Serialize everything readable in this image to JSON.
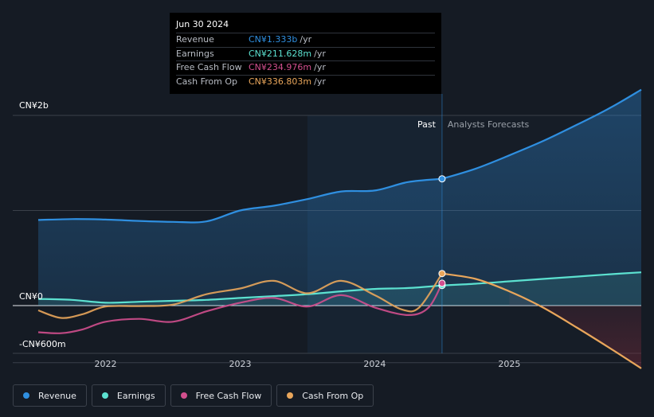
{
  "chart_data": {
    "type": "line",
    "title": "",
    "y_axis": {
      "top_label": "CN¥2b",
      "zero_label": "CN¥0",
      "bottom_label": "-CN¥600m",
      "ylim": [
        -600,
        2000
      ]
    },
    "x_ticks": [
      "2022",
      "2023",
      "2024",
      "2025"
    ],
    "xlim": [
      2021.5,
      2025.98
    ],
    "divider": {
      "forecast_start": 2024.5,
      "shade_start": 2023.5
    },
    "region_labels": {
      "past": "Past",
      "forecast": "Analysts Forecasts"
    },
    "series": [
      {
        "name": "Revenue",
        "color": "#2f8fe0",
        "fill": true,
        "points": [
          [
            2021.5,
            900
          ],
          [
            2021.75,
            910
          ],
          [
            2022.0,
            905
          ],
          [
            2022.25,
            890
          ],
          [
            2022.5,
            880
          ],
          [
            2022.75,
            885
          ],
          [
            2023.0,
            1000
          ],
          [
            2023.25,
            1050
          ],
          [
            2023.5,
            1120
          ],
          [
            2023.75,
            1200
          ],
          [
            2024.0,
            1210
          ],
          [
            2024.25,
            1300
          ],
          [
            2024.5,
            1333
          ]
        ],
        "forecast": [
          [
            2024.5,
            1333
          ],
          [
            2024.75,
            1440
          ],
          [
            2025.0,
            1580
          ],
          [
            2025.25,
            1730
          ],
          [
            2025.5,
            1900
          ],
          [
            2025.75,
            2080
          ],
          [
            2025.98,
            2270
          ]
        ]
      },
      {
        "name": "Earnings",
        "color": "#5ce1d0",
        "fill": true,
        "points": [
          [
            2021.5,
            70
          ],
          [
            2021.75,
            60
          ],
          [
            2022.0,
            30
          ],
          [
            2022.25,
            40
          ],
          [
            2022.5,
            50
          ],
          [
            2022.75,
            60
          ],
          [
            2023.0,
            80
          ],
          [
            2023.25,
            100
          ],
          [
            2023.5,
            120
          ],
          [
            2023.75,
            150
          ],
          [
            2024.0,
            175
          ],
          [
            2024.25,
            185
          ],
          [
            2024.5,
            211.6
          ]
        ],
        "forecast": [
          [
            2024.5,
            211.6
          ],
          [
            2024.75,
            230
          ],
          [
            2025.0,
            255
          ],
          [
            2025.25,
            280
          ],
          [
            2025.5,
            305
          ],
          [
            2025.75,
            330
          ],
          [
            2025.98,
            350
          ]
        ]
      },
      {
        "name": "Free Cash Flow",
        "color": "#d24f8e",
        "fill": false,
        "points": [
          [
            2021.5,
            -280
          ],
          [
            2021.67,
            -290
          ],
          [
            2021.83,
            -250
          ],
          [
            2022.0,
            -170
          ],
          [
            2022.25,
            -140
          ],
          [
            2022.5,
            -170
          ],
          [
            2022.75,
            -60
          ],
          [
            2023.0,
            30
          ],
          [
            2023.25,
            80
          ],
          [
            2023.5,
            -10
          ],
          [
            2023.75,
            110
          ],
          [
            2024.0,
            -20
          ],
          [
            2024.25,
            -100
          ],
          [
            2024.4,
            -20
          ],
          [
            2024.5,
            235
          ]
        ],
        "forecast": []
      },
      {
        "name": "Cash From Op",
        "color": "#e9a65b",
        "fill": false,
        "points": [
          [
            2021.5,
            -50
          ],
          [
            2021.67,
            -130
          ],
          [
            2021.83,
            -90
          ],
          [
            2022.0,
            -10
          ],
          [
            2022.25,
            -5
          ],
          [
            2022.5,
            10
          ],
          [
            2022.75,
            120
          ],
          [
            2023.0,
            180
          ],
          [
            2023.25,
            260
          ],
          [
            2023.5,
            130
          ],
          [
            2023.75,
            260
          ],
          [
            2024.0,
            110
          ],
          [
            2024.2,
            -40
          ],
          [
            2024.33,
            -20
          ],
          [
            2024.5,
            337
          ]
        ],
        "forecast": [
          [
            2024.5,
            337
          ],
          [
            2024.75,
            280
          ],
          [
            2025.0,
            150
          ],
          [
            2025.25,
            -20
          ],
          [
            2025.5,
            -230
          ],
          [
            2025.75,
            -450
          ],
          [
            2025.98,
            -660
          ]
        ]
      }
    ]
  },
  "tooltip": {
    "date": "Jun 30 2024",
    "rows": [
      {
        "label": "Revenue",
        "value": "CN¥1.333b",
        "unit": "/yr",
        "color": "#2f8fe0"
      },
      {
        "label": "Earnings",
        "value": "CN¥211.628m",
        "unit": "/yr",
        "color": "#5ce1d0"
      },
      {
        "label": "Free Cash Flow",
        "value": "CN¥234.976m",
        "unit": "/yr",
        "color": "#d24f8e"
      },
      {
        "label": "Cash From Op",
        "value": "CN¥336.803m",
        "unit": "/yr",
        "color": "#e9a65b"
      }
    ]
  },
  "legend": [
    {
      "label": "Revenue",
      "color": "#2f8fe0"
    },
    {
      "label": "Earnings",
      "color": "#5ce1d0"
    },
    {
      "label": "Free Cash Flow",
      "color": "#d24f8e"
    },
    {
      "label": "Cash From Op",
      "color": "#e9a65b"
    }
  ]
}
